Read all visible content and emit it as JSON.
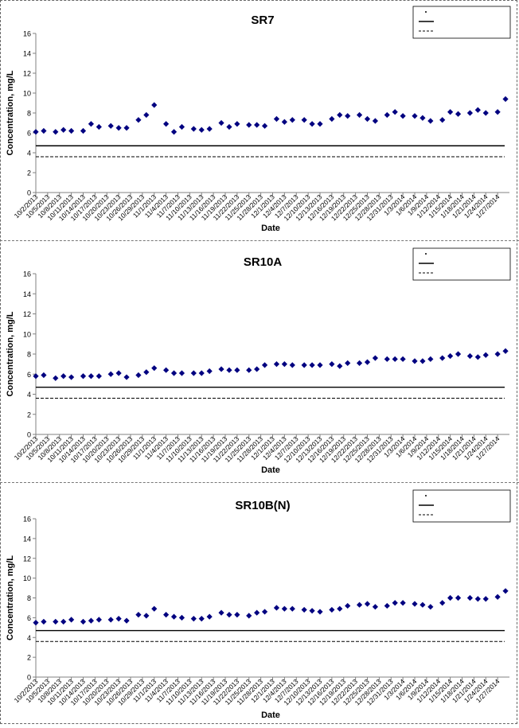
{
  "chart_data": [
    {
      "type": "scatter",
      "title": "SR7",
      "xlabel": "Date",
      "ylabel": "Concentration, mg/L",
      "ylim": [
        0,
        16
      ],
      "yticks": [
        0,
        2,
        4,
        6,
        8,
        10,
        12,
        14,
        16
      ],
      "grid": false,
      "legend_position": "top-right",
      "legend": [],
      "x_tick_labels": [
        "10/2/2013",
        "10/5/2013",
        "10/8/2013",
        "10/11/2013",
        "10/14/2013",
        "10/17/2013",
        "10/20/2013",
        "10/23/2013",
        "10/26/2013",
        "10/29/2013",
        "11/1/2013",
        "11/4/2013",
        "11/7/2013",
        "11/10/2013",
        "11/13/2013",
        "11/16/2013",
        "11/19/2013",
        "11/22/2013",
        "11/25/2013",
        "11/28/2013",
        "12/1/2013",
        "12/4/2013",
        "12/7/2013",
        "12/10/2013",
        "12/13/2013",
        "12/16/2013",
        "12/19/2013",
        "12/22/2013",
        "12/25/2013",
        "12/28/2013",
        "12/31/2013",
        "1/3/2014",
        "1/6/2014",
        "1/9/2014",
        "1/12/2014",
        "1/15/2014",
        "1/18/2014",
        "1/21/2014",
        "1/24/2014",
        "1/27/2014"
      ],
      "reference_lines": [
        {
          "y": 4.7,
          "style": "solid"
        },
        {
          "y": 3.6,
          "style": "dashed"
        }
      ],
      "points": [
        {
          "x": "10/2/2013",
          "y": 6.1
        },
        {
          "x": "10/4/2013",
          "y": 6.2
        },
        {
          "x": "10/7/2013",
          "y": 6.1
        },
        {
          "x": "10/9/2013",
          "y": 6.3
        },
        {
          "x": "10/11/2013",
          "y": 6.2
        },
        {
          "x": "10/14/2013",
          "y": 6.2
        },
        {
          "x": "10/16/2013",
          "y": 6.9
        },
        {
          "x": "10/18/2013",
          "y": 6.6
        },
        {
          "x": "10/21/2013",
          "y": 6.7
        },
        {
          "x": "10/23/2013",
          "y": 6.5
        },
        {
          "x": "10/25/2013",
          "y": 6.5
        },
        {
          "x": "10/28/2013",
          "y": 7.3
        },
        {
          "x": "10/30/2013",
          "y": 7.8
        },
        {
          "x": "11/1/2013",
          "y": 8.8
        },
        {
          "x": "11/4/2013",
          "y": 6.9
        },
        {
          "x": "11/6/2013",
          "y": 6.1
        },
        {
          "x": "11/8/2013",
          "y": 6.6
        },
        {
          "x": "11/11/2013",
          "y": 6.4
        },
        {
          "x": "11/13/2013",
          "y": 6.3
        },
        {
          "x": "11/15/2013",
          "y": 6.4
        },
        {
          "x": "11/18/2013",
          "y": 7.0
        },
        {
          "x": "11/20/2013",
          "y": 6.6
        },
        {
          "x": "11/22/2013",
          "y": 6.9
        },
        {
          "x": "11/25/2013",
          "y": 6.8
        },
        {
          "x": "11/27/2013",
          "y": 6.8
        },
        {
          "x": "11/29/2013",
          "y": 6.7
        },
        {
          "x": "12/2/2013",
          "y": 7.4
        },
        {
          "x": "12/4/2013",
          "y": 7.1
        },
        {
          "x": "12/6/2013",
          "y": 7.3
        },
        {
          "x": "12/9/2013",
          "y": 7.3
        },
        {
          "x": "12/11/2013",
          "y": 6.9
        },
        {
          "x": "12/13/2013",
          "y": 6.9
        },
        {
          "x": "12/16/2013",
          "y": 7.4
        },
        {
          "x": "12/18/2013",
          "y": 7.8
        },
        {
          "x": "12/20/2013",
          "y": 7.7
        },
        {
          "x": "12/23/2013",
          "y": 7.8
        },
        {
          "x": "12/25/2013",
          "y": 7.4
        },
        {
          "x": "12/27/2013",
          "y": 7.2
        },
        {
          "x": "12/30/2013",
          "y": 7.8
        },
        {
          "x": "1/1/2014",
          "y": 8.1
        },
        {
          "x": "1/3/2014",
          "y": 7.7
        },
        {
          "x": "1/6/2014",
          "y": 7.7
        },
        {
          "x": "1/8/2014",
          "y": 7.5
        },
        {
          "x": "1/10/2014",
          "y": 7.2
        },
        {
          "x": "1/13/2014",
          "y": 7.3
        },
        {
          "x": "1/15/2014",
          "y": 8.1
        },
        {
          "x": "1/17/2014",
          "y": 7.9
        },
        {
          "x": "1/20/2014",
          "y": 8.0
        },
        {
          "x": "1/22/2014",
          "y": 8.3
        },
        {
          "x": "1/24/2014",
          "y": 8.0
        },
        {
          "x": "1/27/2014",
          "y": 8.1
        },
        {
          "x": "1/29/2014",
          "y": 9.4
        }
      ]
    },
    {
      "type": "scatter",
      "title": "SR10A",
      "xlabel": "Date",
      "ylabel": "Concentration, mg/L",
      "ylim": [
        0,
        16
      ],
      "yticks": [
        0,
        2,
        4,
        6,
        8,
        10,
        12,
        14,
        16
      ],
      "grid": false,
      "legend_position": "top-right",
      "legend": [],
      "x_tick_labels": [
        "10/2/2013",
        "10/5/2013",
        "10/8/2013",
        "10/11/2013",
        "10/14/2013",
        "10/17/2013",
        "10/20/2013",
        "10/23/2013",
        "10/26/2013",
        "10/29/2013",
        "11/1/2013",
        "11/4/2013",
        "11/7/2013",
        "11/10/2013",
        "11/13/2013",
        "11/16/2013",
        "11/19/2013",
        "11/22/2013",
        "11/25/2013",
        "11/28/2013",
        "12/1/2013",
        "12/4/2013",
        "12/7/2013",
        "12/10/2013",
        "12/13/2013",
        "12/16/2013",
        "12/19/2013",
        "12/22/2013",
        "12/25/2013",
        "12/28/2013",
        "12/31/2013",
        "1/3/2014",
        "1/6/2014",
        "1/9/2014",
        "1/12/2014",
        "1/15/2014",
        "1/18/2014",
        "1/21/2014",
        "1/24/2014",
        "1/27/2014"
      ],
      "reference_lines": [
        {
          "y": 4.7,
          "style": "solid"
        },
        {
          "y": 3.6,
          "style": "dashed"
        }
      ],
      "points": [
        {
          "x": "10/2/2013",
          "y": 5.8
        },
        {
          "x": "10/4/2013",
          "y": 5.9
        },
        {
          "x": "10/7/2013",
          "y": 5.6
        },
        {
          "x": "10/9/2013",
          "y": 5.8
        },
        {
          "x": "10/11/2013",
          "y": 5.7
        },
        {
          "x": "10/14/2013",
          "y": 5.8
        },
        {
          "x": "10/16/2013",
          "y": 5.8
        },
        {
          "x": "10/18/2013",
          "y": 5.8
        },
        {
          "x": "10/21/2013",
          "y": 6.0
        },
        {
          "x": "10/23/2013",
          "y": 6.1
        },
        {
          "x": "10/25/2013",
          "y": 5.7
        },
        {
          "x": "10/28/2013",
          "y": 5.9
        },
        {
          "x": "10/30/2013",
          "y": 6.2
        },
        {
          "x": "11/1/2013",
          "y": 6.6
        },
        {
          "x": "11/4/2013",
          "y": 6.4
        },
        {
          "x": "11/6/2013",
          "y": 6.1
        },
        {
          "x": "11/8/2013",
          "y": 6.1
        },
        {
          "x": "11/11/2013",
          "y": 6.1
        },
        {
          "x": "11/13/2013",
          "y": 6.1
        },
        {
          "x": "11/15/2013",
          "y": 6.3
        },
        {
          "x": "11/18/2013",
          "y": 6.5
        },
        {
          "x": "11/20/2013",
          "y": 6.4
        },
        {
          "x": "11/22/2013",
          "y": 6.4
        },
        {
          "x": "11/25/2013",
          "y": 6.4
        },
        {
          "x": "11/27/2013",
          "y": 6.5
        },
        {
          "x": "11/29/2013",
          "y": 6.9
        },
        {
          "x": "12/2/2013",
          "y": 7.0
        },
        {
          "x": "12/4/2013",
          "y": 7.0
        },
        {
          "x": "12/6/2013",
          "y": 6.9
        },
        {
          "x": "12/9/2013",
          "y": 6.9
        },
        {
          "x": "12/11/2013",
          "y": 6.9
        },
        {
          "x": "12/13/2013",
          "y": 6.9
        },
        {
          "x": "12/16/2013",
          "y": 7.0
        },
        {
          "x": "12/18/2013",
          "y": 6.8
        },
        {
          "x": "12/20/2013",
          "y": 7.1
        },
        {
          "x": "12/23/2013",
          "y": 7.1
        },
        {
          "x": "12/25/2013",
          "y": 7.2
        },
        {
          "x": "12/27/2013",
          "y": 7.6
        },
        {
          "x": "12/30/2013",
          "y": 7.5
        },
        {
          "x": "1/1/2014",
          "y": 7.5
        },
        {
          "x": "1/3/2014",
          "y": 7.5
        },
        {
          "x": "1/6/2014",
          "y": 7.3
        },
        {
          "x": "1/8/2014",
          "y": 7.3
        },
        {
          "x": "1/10/2014",
          "y": 7.5
        },
        {
          "x": "1/13/2014",
          "y": 7.6
        },
        {
          "x": "1/15/2014",
          "y": 7.8
        },
        {
          "x": "1/17/2014",
          "y": 8.0
        },
        {
          "x": "1/20/2014",
          "y": 7.8
        },
        {
          "x": "1/22/2014",
          "y": 7.7
        },
        {
          "x": "1/24/2014",
          "y": 7.9
        },
        {
          "x": "1/27/2014",
          "y": 8.0
        },
        {
          "x": "1/29/2014",
          "y": 8.3
        }
      ]
    },
    {
      "type": "scatter",
      "title": "SR10B(N)",
      "xlabel": "Date",
      "ylabel": "Concentration, mg/L",
      "ylim": [
        0,
        16
      ],
      "yticks": [
        0,
        2,
        4,
        6,
        8,
        10,
        12,
        14,
        16
      ],
      "grid": false,
      "legend_position": "top-right",
      "legend": [],
      "x_tick_labels": [
        "10/2/2013",
        "10/5/2013",
        "10/8/2013",
        "10/11/2013",
        "10/14/2013",
        "10/17/2013",
        "10/20/2013",
        "10/23/2013",
        "10/26/2013",
        "10/29/2013",
        "11/1/2013",
        "11/4/2013",
        "11/7/2013",
        "11/10/2013",
        "11/13/2013",
        "11/16/2013",
        "11/19/2013",
        "11/22/2013",
        "11/25/2013",
        "11/28/2013",
        "12/1/2013",
        "12/4/2013",
        "12/7/2013",
        "12/10/2013",
        "12/13/2013",
        "12/16/2013",
        "12/19/2013",
        "12/22/2013",
        "12/25/2013",
        "12/28/2013",
        "12/31/2013",
        "1/3/2014",
        "1/6/2014",
        "1/9/2014",
        "1/12/2014",
        "1/15/2014",
        "1/18/2014",
        "1/21/2014",
        "1/24/2014",
        "1/27/2014"
      ],
      "reference_lines": [
        {
          "y": 4.7,
          "style": "solid"
        },
        {
          "y": 3.6,
          "style": "dashed"
        }
      ],
      "points": [
        {
          "x": "10/2/2013",
          "y": 5.5
        },
        {
          "x": "10/4/2013",
          "y": 5.6
        },
        {
          "x": "10/7/2013",
          "y": 5.6
        },
        {
          "x": "10/9/2013",
          "y": 5.6
        },
        {
          "x": "10/11/2013",
          "y": 5.8
        },
        {
          "x": "10/14/2013",
          "y": 5.6
        },
        {
          "x": "10/16/2013",
          "y": 5.7
        },
        {
          "x": "10/18/2013",
          "y": 5.8
        },
        {
          "x": "10/21/2013",
          "y": 5.8
        },
        {
          "x": "10/23/2013",
          "y": 5.9
        },
        {
          "x": "10/25/2013",
          "y": 5.7
        },
        {
          "x": "10/28/2013",
          "y": 6.3
        },
        {
          "x": "10/30/2013",
          "y": 6.2
        },
        {
          "x": "11/1/2013",
          "y": 6.9
        },
        {
          "x": "11/4/2013",
          "y": 6.3
        },
        {
          "x": "11/6/2013",
          "y": 6.1
        },
        {
          "x": "11/8/2013",
          "y": 6.0
        },
        {
          "x": "11/11/2013",
          "y": 5.9
        },
        {
          "x": "11/13/2013",
          "y": 5.9
        },
        {
          "x": "11/15/2013",
          "y": 6.1
        },
        {
          "x": "11/18/2013",
          "y": 6.5
        },
        {
          "x": "11/20/2013",
          "y": 6.3
        },
        {
          "x": "11/22/2013",
          "y": 6.3
        },
        {
          "x": "11/25/2013",
          "y": 6.2
        },
        {
          "x": "11/27/2013",
          "y": 6.5
        },
        {
          "x": "11/29/2013",
          "y": 6.6
        },
        {
          "x": "12/2/2013",
          "y": 7.0
        },
        {
          "x": "12/4/2013",
          "y": 6.9
        },
        {
          "x": "12/6/2013",
          "y": 6.9
        },
        {
          "x": "12/9/2013",
          "y": 6.8
        },
        {
          "x": "12/11/2013",
          "y": 6.7
        },
        {
          "x": "12/13/2013",
          "y": 6.6
        },
        {
          "x": "12/16/2013",
          "y": 6.8
        },
        {
          "x": "12/18/2013",
          "y": 6.9
        },
        {
          "x": "12/20/2013",
          "y": 7.2
        },
        {
          "x": "12/23/2013",
          "y": 7.3
        },
        {
          "x": "12/25/2013",
          "y": 7.4
        },
        {
          "x": "12/27/2013",
          "y": 7.1
        },
        {
          "x": "12/30/2013",
          "y": 7.2
        },
        {
          "x": "1/1/2014",
          "y": 7.5
        },
        {
          "x": "1/3/2014",
          "y": 7.5
        },
        {
          "x": "1/6/2014",
          "y": 7.4
        },
        {
          "x": "1/8/2014",
          "y": 7.3
        },
        {
          "x": "1/10/2014",
          "y": 7.1
        },
        {
          "x": "1/13/2014",
          "y": 7.5
        },
        {
          "x": "1/15/2014",
          "y": 8.0
        },
        {
          "x": "1/17/2014",
          "y": 8.0
        },
        {
          "x": "1/20/2014",
          "y": 8.0
        },
        {
          "x": "1/22/2014",
          "y": 7.9
        },
        {
          "x": "1/24/2014",
          "y": 7.9
        },
        {
          "x": "1/27/2014",
          "y": 8.1
        },
        {
          "x": "1/29/2014",
          "y": 8.7
        }
      ]
    }
  ],
  "colors": {
    "marker": "#000080",
    "axis": "#808080",
    "text": "#000000"
  }
}
